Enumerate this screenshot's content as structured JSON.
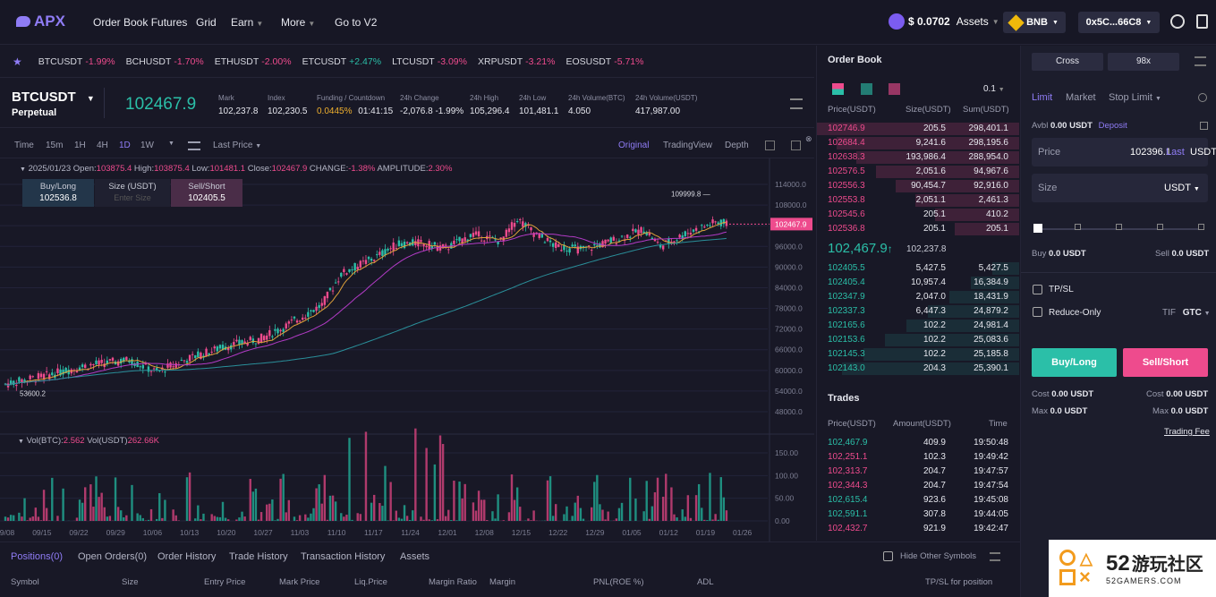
{
  "nav": {
    "logo": "APX",
    "items": [
      "Order Book Futures",
      "Grid",
      "Earn",
      "More",
      "Go to V2"
    ],
    "balance": "$ 0.0702",
    "assets": "Assets",
    "chain": "BNB",
    "wallet": "0x5C...66C8"
  },
  "ticker": [
    {
      "s": "BTCUSDT",
      "c": "-1.99%"
    },
    {
      "s": "BCHUSDT",
      "c": "-1.70%"
    },
    {
      "s": "ETHUSDT",
      "c": "-2.00%"
    },
    {
      "s": "ETCUSDT",
      "c": "+2.47%"
    },
    {
      "s": "LTCUSDT",
      "c": "-3.09%"
    },
    {
      "s": "XRPUSDT",
      "c": "-3.21%"
    },
    {
      "s": "EOSUSDT",
      "c": "-5.71%"
    }
  ],
  "market": {
    "symbol": "BTCUSDT",
    "type": "Perpetual",
    "price": "102467.9",
    "stats": [
      {
        "l": "Mark",
        "v": "102,237.8"
      },
      {
        "l": "Index",
        "v": "102,230.5"
      },
      {
        "l": "Funding / Countdown",
        "v": "0.0445%",
        "v2": "01:41:15"
      },
      {
        "l": "24h Change",
        "v": "-2,076.8 -1.99%"
      },
      {
        "l": "24h High",
        "v": "105,296.4"
      },
      {
        "l": "24h Low",
        "v": "101,481.1"
      },
      {
        "l": "24h Volume(BTC)",
        "v": "4.050"
      },
      {
        "l": "24h Volume(USDT)",
        "v": "417,987.00"
      }
    ]
  },
  "chartbar": {
    "tfs": [
      "Time",
      "15m",
      "1H",
      "4H",
      "1D",
      "1W"
    ],
    "price_type": "Last Price",
    "views": [
      "Original",
      "TradingView",
      "Depth"
    ]
  },
  "legend": {
    "date": "2025/01/23",
    "open_l": "Open:",
    "open": "103875.4",
    "high_l": "High:",
    "high": "103875.4",
    "low_l": "Low:",
    "low": "101481.1",
    "close_l": "Close:",
    "close": "102467.9",
    "chg_l": "CHANGE:",
    "chg": "-1.38%",
    "amp_l": "AMPLITUDE:",
    "amp": "2.30%"
  },
  "quick": {
    "buy": "Buy/Long",
    "buy_p": "102536.8",
    "size": "Size (USDT)",
    "size_ph": "Enter Size",
    "sell": "Sell/Short",
    "sell_p": "102405.5"
  },
  "vol": {
    "l1": "Vol(BTC):",
    "v1": "2.562",
    "l2": "Vol(USDT)",
    "v2": "262.66K"
  },
  "chart_data": {
    "type": "candlestick",
    "price_axis": [
      "114000.0",
      "108000.0",
      "102000.0",
      "96000.0",
      "90000.0",
      "84000.0",
      "78000.0",
      "72000.0",
      "66000.0",
      "60000.0",
      "54000.0",
      "48000.0"
    ],
    "vol_axis": [
      "150.00",
      "100.00",
      "50.00",
      "0.00"
    ],
    "dates": [
      "09/08",
      "09/15",
      "09/22",
      "09/29",
      "10/06",
      "10/13",
      "10/20",
      "10/27",
      "11/03",
      "11/10",
      "11/17",
      "11/24",
      "12/01",
      "12/08",
      "12/15",
      "12/22",
      "12/29",
      "01/05",
      "01/12",
      "01/19",
      "01/26"
    ],
    "last": "102467.9",
    "max_label": "109999.8",
    "min_label": "53600.2"
  },
  "orderbook": {
    "title": "Order Book",
    "step": "0.1",
    "cols": [
      "Price(USDT)",
      "Size(USDT)",
      "Sum(USDT)"
    ],
    "asks": [
      [
        "102746.9",
        "205.5",
        "298,401.1"
      ],
      [
        "102684.4",
        "9,241.6",
        "298,195.6"
      ],
      [
        "102638.3",
        "193,986.4",
        "288,954.0"
      ],
      [
        "102576.5",
        "2,051.6",
        "94,967.6"
      ],
      [
        "102556.3",
        "90,454.7",
        "92,916.0"
      ],
      [
        "102553.8",
        "2,051.1",
        "2,461.3"
      ],
      [
        "102545.6",
        "205.1",
        "410.2"
      ],
      [
        "102536.8",
        "205.1",
        "205.1"
      ]
    ],
    "mid": "102,467.9",
    "mid_arrow": "↑",
    "mark": "102,237.8",
    "bids": [
      [
        "102405.5",
        "5,427.5",
        "5,427.5"
      ],
      [
        "102405.4",
        "10,957.4",
        "16,384.9"
      ],
      [
        "102347.9",
        "2,047.0",
        "18,431.9"
      ],
      [
        "102337.3",
        "6,447.3",
        "24,879.2"
      ],
      [
        "102165.6",
        "102.2",
        "24,981.4"
      ],
      [
        "102153.6",
        "102.2",
        "25,083.6"
      ],
      [
        "102145.3",
        "102.2",
        "25,185.8"
      ],
      [
        "102143.0",
        "204.3",
        "25,390.1"
      ]
    ]
  },
  "trades": {
    "title": "Trades",
    "cols": [
      "Price(USDT)",
      "Amount(USDT)",
      "Time"
    ],
    "rows": [
      [
        "102,467.9",
        "409.9",
        "19:50:48",
        "up"
      ],
      [
        "102,251.1",
        "102.3",
        "19:49:42",
        "dn"
      ],
      [
        "102,313.7",
        "204.7",
        "19:47:57",
        "dn"
      ],
      [
        "102,344.3",
        "204.7",
        "19:47:54",
        "dn"
      ],
      [
        "102,615.4",
        "923.6",
        "19:45:08",
        "up"
      ],
      [
        "102,591.1",
        "307.8",
        "19:44:05",
        "up"
      ],
      [
        "102,432.7",
        "921.9",
        "19:42:47",
        "dn"
      ]
    ]
  },
  "panel": {
    "cross": "Cross",
    "lev": "98x",
    "types": [
      "Limit",
      "Market",
      "Stop Limit"
    ],
    "avbl_l": "Avbl",
    "avbl": "0.00 USDT",
    "deposit": "Deposit",
    "price_l": "Price",
    "price": "102396.1",
    "last": "Last",
    "unit": "USDT",
    "size_l": "Size",
    "size_unit": "USDT",
    "buy_l": "Buy",
    "buy_v": "0.0 USDT",
    "sell_l": "Sell",
    "sell_v": "0.0 USDT",
    "tpsl": "TP/SL",
    "reduce": "Reduce-Only",
    "tif": "TIF",
    "gtc": "GTC",
    "buy_btn": "Buy/Long",
    "sell_btn": "Sell/Short",
    "cost_l": "Cost",
    "cost": "0.00 USDT",
    "max_l": "Max",
    "max": "0.0 USDT",
    "fee": "Trading Fee"
  },
  "bottom": {
    "tabs": [
      "Positions(0)",
      "Open Orders(0)",
      "Order History",
      "Trade History",
      "Transaction History",
      "Assets"
    ],
    "hide": "Hide Other Symbols",
    "cols": [
      "Symbol",
      "Size",
      "Entry Price",
      "Mark Price",
      "Liq.Price",
      "Margin Ratio",
      "Margin",
      "PNL(ROE %)",
      "ADL",
      "TP/SL for position"
    ]
  },
  "watermark": {
    "num": "52",
    "cn": "游玩社区",
    "en": "52GAMERS.COM"
  },
  "colors": {
    "up": "#2bbfa8",
    "down": "#ee4b8d",
    "accent": "#8f7cf5"
  }
}
